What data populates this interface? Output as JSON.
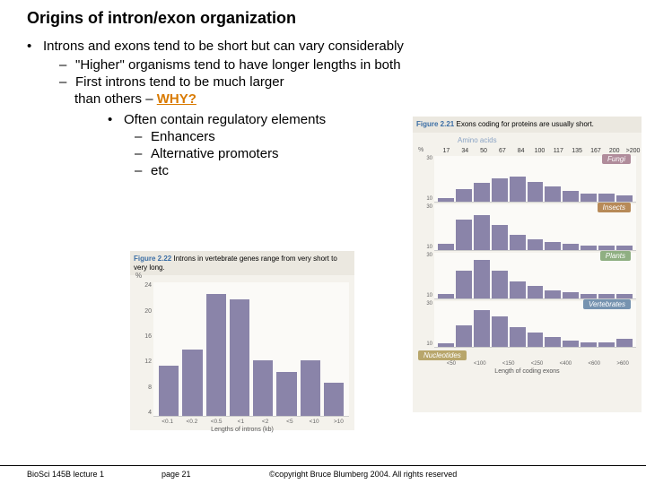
{
  "title": "Origins of intron/exon organization",
  "bullets": {
    "l1": "Introns and exons tend to be short but can vary considerably",
    "l2a": "\"Higher\" organisms tend to have longer lengths in both",
    "l2b": "First introns tend to be much larger",
    "l2b_cont": "than others – ",
    "why": "WHY?",
    "l3": "Often contain regulatory elements",
    "l4a": "Enhancers",
    "l4b": "Alternative promoters",
    "l4c": "etc"
  },
  "fig21": {
    "figlabel": "Figure 2.21",
    "caption": "Exons coding for proteins are usually short.",
    "amino_label": "Amino acids",
    "xticks": [
      "17",
      "34",
      "50",
      "67",
      "84",
      "100",
      "117",
      "135",
      "167",
      "200",
      ">200"
    ],
    "xlabeltext": "Length of coding exons",
    "bar_color": "#8a84a9",
    "label_bg": {
      "fungi": "#b08c9b",
      "insects": "#b78a58",
      "plants": "#8faf82",
      "vertebrates": "#7693b0",
      "nucleotides": "#b8a66b"
    },
    "panels": [
      {
        "label": "Fungi",
        "pct": "%",
        "yticks": [
          "30",
          "10"
        ],
        "values": [
          2,
          8,
          12,
          15,
          16,
          13,
          10,
          7,
          5,
          5,
          4
        ]
      },
      {
        "label": "Insects",
        "yticks": [
          "30",
          "10"
        ],
        "values": [
          4,
          20,
          23,
          16,
          10,
          7,
          5,
          4,
          3,
          3,
          3
        ]
      },
      {
        "label": "Plants",
        "yticks": [
          "30",
          "10"
        ],
        "values": [
          3,
          18,
          25,
          18,
          11,
          8,
          5,
          4,
          3,
          3,
          3
        ]
      },
      {
        "label": "Vertebrates",
        "yticks": [
          "30",
          "10"
        ],
        "values": [
          2,
          14,
          24,
          20,
          13,
          9,
          6,
          4,
          3,
          3,
          5
        ]
      }
    ],
    "nucleotides_label": "Nucleotides",
    "xfooter": [
      "<50",
      "<100",
      "<150",
      "<250",
      "<400",
      "<600",
      ">600"
    ]
  },
  "fig22": {
    "figlabel": "Figure 2.22",
    "caption": "Introns in vertebrate genes range from very short to very long.",
    "pct": "%",
    "bar_color": "#8a84a9",
    "yticks": [
      "24",
      "20",
      "16",
      "12",
      "8",
      "4"
    ],
    "values": [
      9,
      12,
      22,
      21,
      10,
      8,
      10,
      6
    ],
    "xticks": [
      "<0.1",
      "<0.2",
      "<0.5",
      "<1",
      "<2",
      "<5",
      "<10",
      ">10"
    ],
    "xaxis_title": "Lengths of introns (kb)"
  },
  "footer": {
    "left": "BioSci 145B lecture 1",
    "mid": "page 21",
    "right": "©copyright Bruce Blumberg 2004. All rights reserved"
  }
}
